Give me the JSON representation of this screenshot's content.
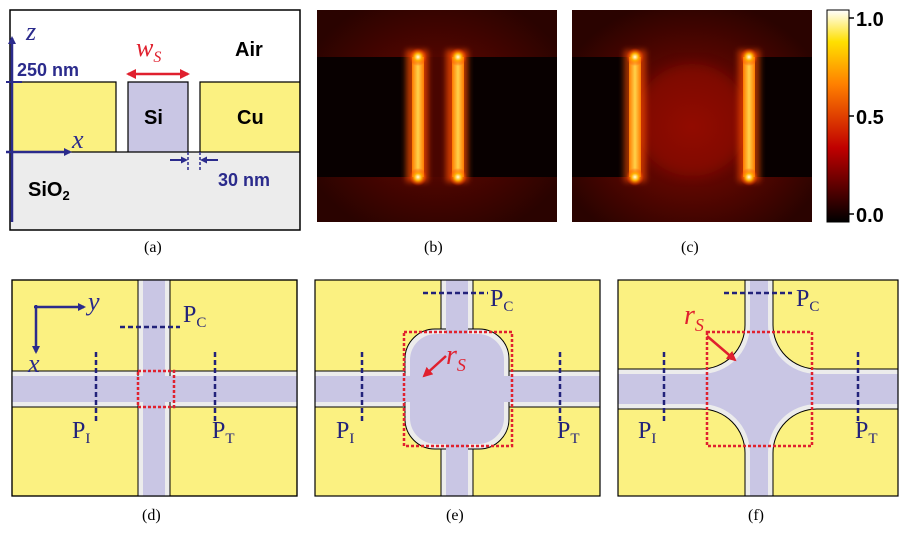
{
  "panels": {
    "a": {
      "caption": "(a)",
      "axis_z": "z",
      "axis_x": "x",
      "label_height": "250 nm",
      "label_width_var": "w",
      "label_width_sub": "S",
      "label_air": "Air",
      "label_si": "Si",
      "label_cu": "Cu",
      "label_sio2": "SiO",
      "label_sio2_sub": "2",
      "label_gap": "30 nm"
    },
    "b": {
      "caption": "(b)"
    },
    "c": {
      "caption": "(c)"
    },
    "colorbar": {
      "ticks": [
        "1.0",
        "0.5",
        "0.0"
      ],
      "colormap": "hot"
    },
    "d": {
      "caption": "(d)",
      "axis_y": "y",
      "axis_x": "x",
      "port_c": "P",
      "port_c_sub": "C",
      "port_i": "P",
      "port_i_sub": "I",
      "port_t": "P",
      "port_t_sub": "T"
    },
    "e": {
      "caption": "(e)",
      "radius_var": "r",
      "radius_sub": "S",
      "port_c": "P",
      "port_c_sub": "C",
      "port_i": "P",
      "port_i_sub": "I",
      "port_t": "P",
      "port_t_sub": "T"
    },
    "f": {
      "caption": "(f)",
      "radius_var": "r",
      "radius_sub": "S",
      "port_c": "P",
      "port_c_sub": "C",
      "port_i": "P",
      "port_i_sub": "I",
      "port_t": "P",
      "port_t_sub": "T"
    }
  },
  "colors": {
    "cu": "#fbf181",
    "si": "#c9c6e4",
    "sio2": "#ececec",
    "air": "#ffffff",
    "axis": "#2b2b8c",
    "marker_red": "#e0202e",
    "port_dash": "#22227a"
  }
}
